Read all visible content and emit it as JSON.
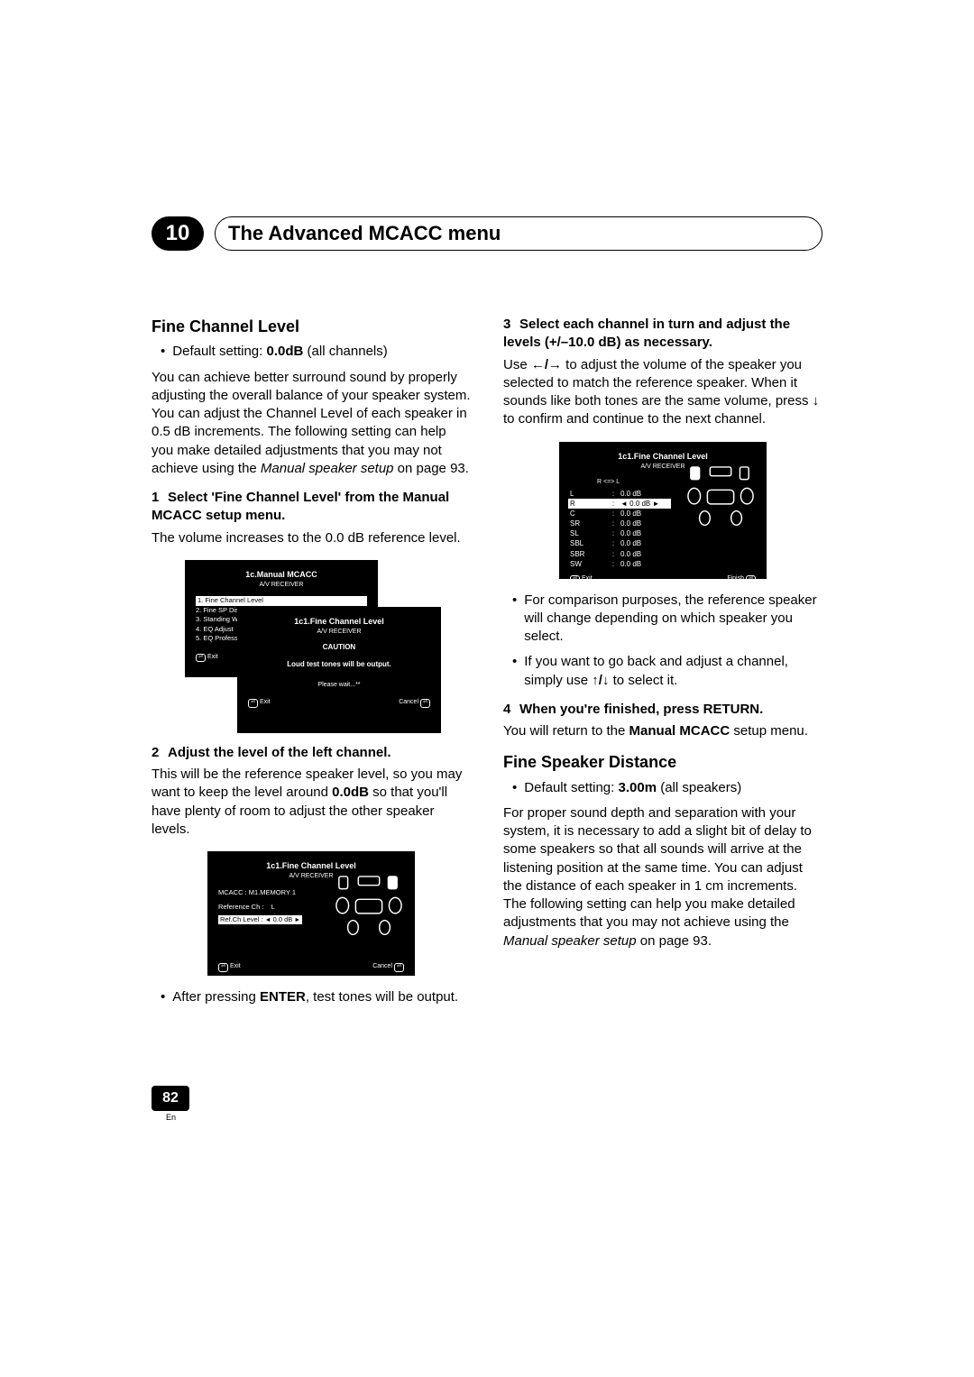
{
  "chapter": {
    "number": "10",
    "title": "The Advanced MCACC menu"
  },
  "left_column": {
    "section1": {
      "heading": "Fine Channel Level",
      "default_prefix": "Default setting: ",
      "default_value": "0.0dB",
      "default_suffix": " (all channels)",
      "intro_a": "You can achieve better surround sound by properly adjusting the overall balance of your speaker system. You can adjust the Channel Level of each speaker in 0.5 dB increments. The following setting can help you make detailed adjustments that you may not achieve using the ",
      "intro_ref": "Manual speaker setup",
      "intro_b": " on page 93.",
      "step1_num": "1",
      "step1_title": "Select 'Fine Channel Level' from the Manual MCACC setup menu.",
      "step1_body": "The volume increases to the 0.0 dB reference level.",
      "screen1_back": {
        "title": "1c.Manual MCACC",
        "sub": "A/V RECEIVER",
        "items": [
          "1. Fine Channel Level",
          "2. Fine SP Distance",
          "3. Standing Wave",
          "4. EQ Adjust",
          "5. EQ Professional"
        ],
        "exit": "Exit"
      },
      "screen1_front": {
        "title": "1c1.Fine Channel Level",
        "sub": "A/V RECEIVER",
        "caution": "CAUTION",
        "msg": "Loud test tones will be output.",
        "wait": "Please wait...**",
        "exit": "Exit",
        "cancel": "Cancel"
      },
      "step2_num": "2",
      "step2_title": "Adjust the level of the left channel.",
      "step2_body_a": "This will be the reference speaker level, so you may want to keep the level around ",
      "step2_body_bold": "0.0dB",
      "step2_body_b": " so that you'll have plenty of room to adjust the other speaker levels.",
      "screen2": {
        "title": "1c1.Fine Channel Level",
        "sub": "A/V RECEIVER",
        "memory": "MCACC  : M1.MEMORY 1",
        "ref_label": "Reference Ch :",
        "ref_val": "L",
        "level_label": "Ref.Ch Level  :",
        "level_val": "0.0 dB",
        "exit": "Exit",
        "cancel": "Cancel"
      },
      "after_enter_a": "After pressing ",
      "after_enter_bold": "ENTER",
      "after_enter_b": ", test tones will be output."
    }
  },
  "right_column": {
    "step3_num": "3",
    "step3_title": "Select each channel in turn and adjust the levels (+/–10.0 dB) as necessary.",
    "step3_body_a": "Use ",
    "step3_body_b": " to adjust the volume of the speaker you selected to match the reference speaker. When it sounds like both tones are the same volume, press ",
    "step3_body_c": " to confirm and continue to the next channel.",
    "screen3": {
      "title": "1c1.Fine Channel Level",
      "sub": "A/V RECEIVER",
      "header": "R <=> L",
      "rows": [
        {
          "ch": "L",
          "val": "0.0 dB",
          "hi": false
        },
        {
          "ch": "R",
          "val": "0.0 dB",
          "hi": true
        },
        {
          "ch": "C",
          "val": "0.0 dB",
          "hi": false
        },
        {
          "ch": "SR",
          "val": "0.0 dB",
          "hi": false
        },
        {
          "ch": "SL",
          "val": "0.0 dB",
          "hi": false
        },
        {
          "ch": "SBL",
          "val": "0.0 dB",
          "hi": false
        },
        {
          "ch": "SBR",
          "val": "0.0 dB",
          "hi": false
        },
        {
          "ch": "SW",
          "val": "0.0 dB",
          "hi": false
        }
      ],
      "exit": "Exit",
      "finish": "Finish"
    },
    "bullet_compare": "For comparison purposes, the reference speaker will change depending on which speaker you select.",
    "bullet_back_a": "If you want to go back and adjust a channel, simply use ",
    "bullet_back_b": " to select it.",
    "step4_num": "4",
    "step4_title": "When you're finished, press RETURN.",
    "step4_body_a": "You will return to the ",
    "step4_body_bold": "Manual MCACC",
    "step4_body_b": " setup menu.",
    "section2": {
      "heading": "Fine Speaker Distance",
      "default_prefix": "Default setting: ",
      "default_value": "3.00m",
      "default_suffix": " (all speakers)",
      "body_a": "For proper sound depth and separation with your system, it is necessary to add a slight bit of delay to some speakers so that all sounds will arrive at the listening position at the same time. You can adjust the distance of each speaker in 1 cm increments. The following setting can help you make detailed adjustments that you may not achieve using the ",
      "body_ref": "Manual speaker setup",
      "body_b": " on page 93."
    }
  },
  "footer": {
    "page": "82",
    "lang": "En"
  },
  "arrows": {
    "lr": "←/→",
    "down": "↓",
    "ud": "↑/↓"
  }
}
